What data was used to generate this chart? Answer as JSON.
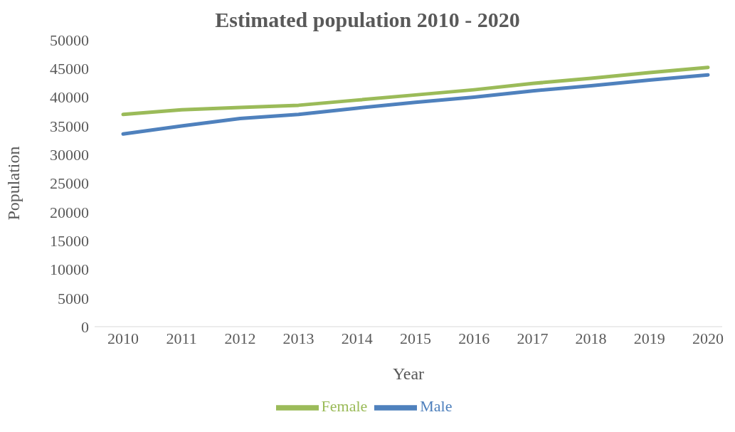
{
  "chart_data": {
    "type": "line",
    "title": "Estimated population 2010 - 2020",
    "xlabel": "Year",
    "ylabel": "Population",
    "categories": [
      "2010",
      "2011",
      "2012",
      "2013",
      "2014",
      "2015",
      "2016",
      "2017",
      "2018",
      "2019",
      "2020"
    ],
    "series": [
      {
        "name": "Male",
        "color": "#4f81bd",
        "values": [
          33600,
          35000,
          36300,
          37000,
          38100,
          39100,
          40000,
          41100,
          42000,
          43000,
          43900
        ]
      },
      {
        "name": "Female",
        "color": "#9bbb59",
        "values": [
          37000,
          37800,
          38200,
          38600,
          39500,
          40400,
          41300,
          42400,
          43300,
          44300,
          45200
        ]
      }
    ],
    "ylim": [
      0,
      50000
    ],
    "yticks": [
      0,
      5000,
      10000,
      15000,
      20000,
      25000,
      30000,
      35000,
      40000,
      45000,
      50000
    ],
    "grid": false,
    "legend": "bottom",
    "marker": "none",
    "line_style": "solid"
  }
}
